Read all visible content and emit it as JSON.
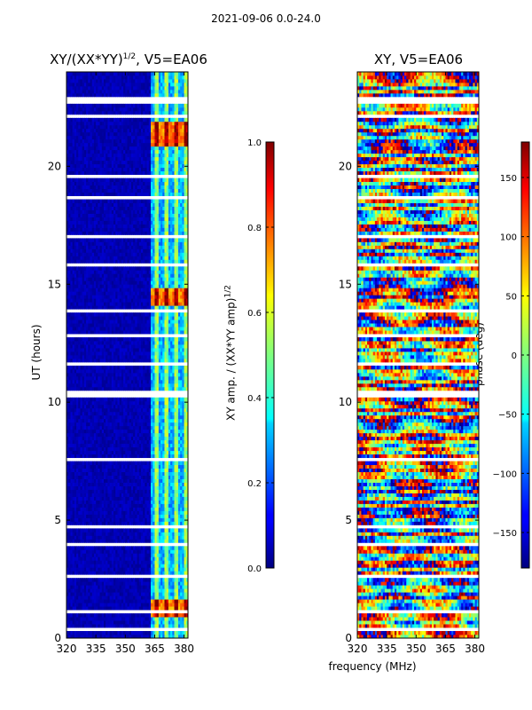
{
  "suptitle": "2021-09-06 0.0-24.0",
  "colors": {
    "jet_low": "#00007f",
    "jet_high": "#7f0000",
    "grid": "#ffffff"
  },
  "chart_data": [
    {
      "type": "heatmap",
      "title_main": "XY/(XX*YY)",
      "title_exp": "1/2",
      "title_suffix": ", V5=EA06",
      "xlabel": "",
      "ylabel": "UT (hours)",
      "xlim": [
        320,
        382
      ],
      "ylim": [
        0,
        24
      ],
      "xticks": [
        "320",
        "335",
        "350",
        "365",
        "380"
      ],
      "xtick_values": [
        320,
        335,
        350,
        365,
        380
      ],
      "yticks": [
        "0",
        "5",
        "10",
        "15",
        "20"
      ],
      "ytick_values": [
        0,
        5,
        10,
        15,
        20
      ],
      "colorbar": {
        "label_main": "XY amp. / (XX*YY amp)",
        "label_exp": "1/2",
        "range": [
          0.0,
          1.0
        ],
        "ticks": [
          "0.0",
          "0.2",
          "0.4",
          "0.6",
          "0.8",
          "1.0"
        ],
        "tick_values": [
          0.0,
          0.2,
          0.4,
          0.6,
          0.8,
          1.0
        ]
      }
    },
    {
      "type": "heatmap",
      "title": "XY, V5=EA06",
      "xlabel": "frequency (MHz)",
      "ylabel": "",
      "xlim": [
        320,
        382
      ],
      "ylim": [
        0,
        24
      ],
      "xticks": [
        "320",
        "335",
        "350",
        "365",
        "380"
      ],
      "xtick_values": [
        320,
        335,
        350,
        365,
        380
      ],
      "yticks": [
        "0",
        "5",
        "10",
        "15",
        "20"
      ],
      "ytick_values": [
        0,
        5,
        10,
        15,
        20
      ],
      "colorbar": {
        "label": "phase (deg)",
        "range": [
          -180,
          180
        ],
        "ticks": [
          "−150",
          "−100",
          "−50",
          "0",
          "50",
          "100",
          "150"
        ],
        "tick_values": [
          -150,
          -100,
          -50,
          0,
          50,
          100,
          150
        ]
      }
    }
  ]
}
